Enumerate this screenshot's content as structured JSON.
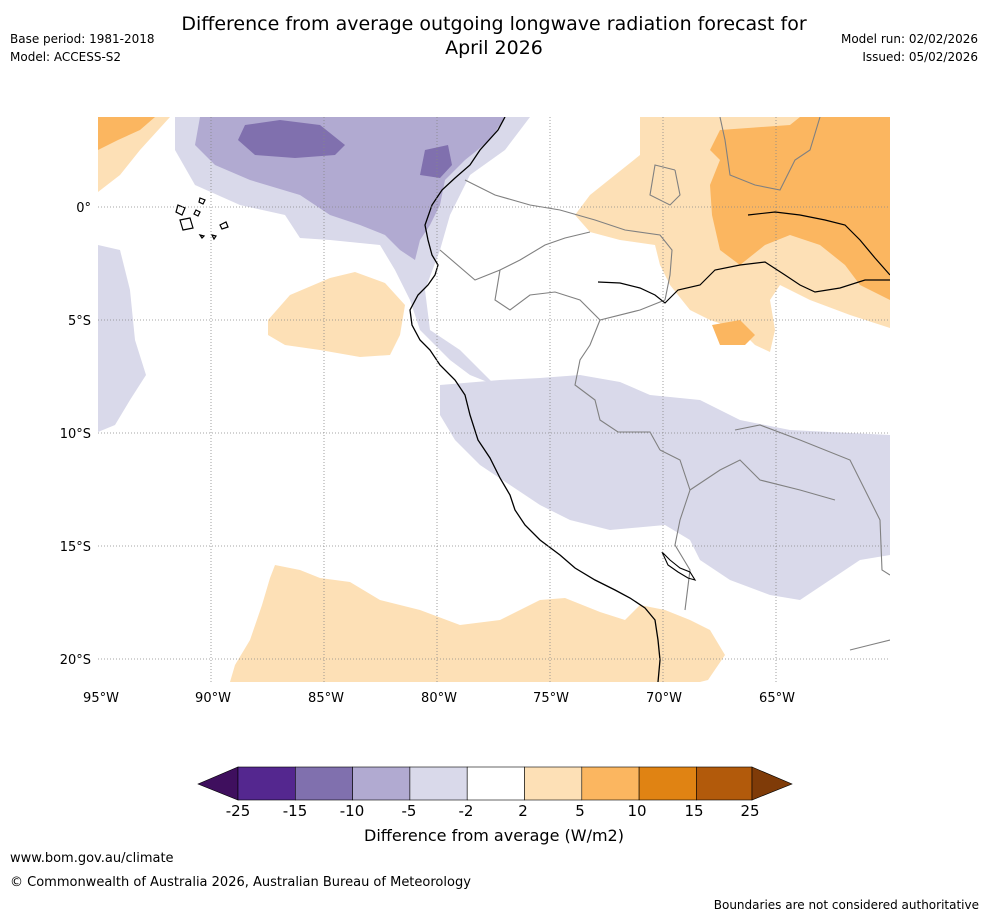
{
  "header": {
    "title_line1": "Difference from average outgoing longwave radiation forecast for",
    "title_line2": "April 2026",
    "base_period": "Base period: 1981-2018",
    "model": "Model: ACCESS-S2",
    "model_run": "Model run: 02/02/2026",
    "issued": "Issued: 05/02/2026"
  },
  "map": {
    "lat_labels": [
      "0°",
      "5°S",
      "10°S",
      "15°S",
      "20°S"
    ],
    "lon_labels": [
      "95°W",
      "90°W",
      "85°W",
      "80°W",
      "75°W",
      "70°W",
      "65°W"
    ]
  },
  "colorbar": {
    "ticks": [
      "-25",
      "-15",
      "-10",
      "-5",
      "-2",
      "2",
      "5",
      "10",
      "15",
      "25"
    ],
    "colors": [
      "#3f0f5e",
      "#54278f",
      "#8070ae",
      "#b1aad1",
      "#d9d9ea",
      "#ffffff",
      "#fde0b6",
      "#fbb660",
      "#e08313",
      "#b25a0b",
      "#7f3b08"
    ],
    "title": "Difference from average (W/m2)"
  },
  "footer": {
    "url": "www.bom.gov.au/climate",
    "copyright": "© Commonwealth of Australia 2026, Australian Bureau of Meteorology",
    "disclaimer": "Boundaries are not considered authoritative"
  }
}
